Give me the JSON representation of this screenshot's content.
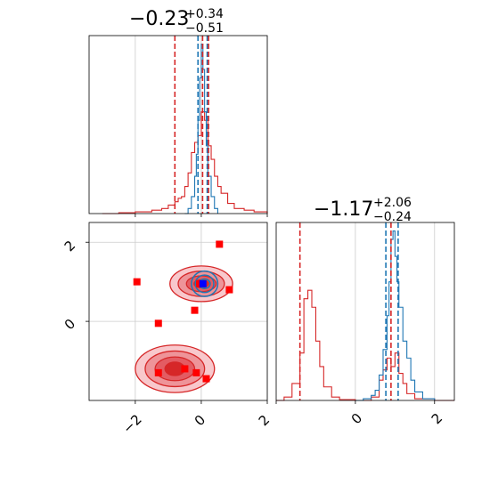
{
  "chart_data": [
    {
      "panel": "top-left",
      "type": "line",
      "title_main": "−0.23",
      "title_sup": "+0.34",
      "title_sub": "−0.51",
      "xlim": [
        -3.4,
        2.0
      ],
      "grid": true,
      "series": [
        {
          "color": "#d62728",
          "x": [
            -3.0,
            -2.5,
            -2.0,
            -1.5,
            -1.2,
            -1.0,
            -0.8,
            -0.7,
            -0.6,
            -0.5,
            -0.4,
            -0.3,
            -0.2,
            -0.1,
            0.0,
            0.1,
            0.2,
            0.3,
            0.4,
            0.5,
            0.6,
            0.8,
            1.0,
            1.3,
            1.6,
            2.0
          ],
          "y": [
            0,
            0.005,
            0.01,
            0.02,
            0.03,
            0.05,
            0.07,
            0.09,
            0.1,
            0.16,
            0.24,
            0.36,
            0.42,
            0.46,
            0.6,
            0.55,
            0.4,
            0.32,
            0.22,
            0.16,
            0.12,
            0.06,
            0.03,
            0.02,
            0.01,
            0
          ]
        },
        {
          "color": "#1f77b4",
          "x": [
            -0.5,
            -0.4,
            -0.3,
            -0.2,
            -0.15,
            -0.1,
            -0.05,
            0.0,
            0.05,
            0.1,
            0.15,
            0.2,
            0.3,
            0.4,
            0.5
          ],
          "y": [
            0,
            0.03,
            0.1,
            0.22,
            0.35,
            0.55,
            0.8,
            1.0,
            0.85,
            0.6,
            0.4,
            0.22,
            0.1,
            0.03,
            0
          ]
        }
      ],
      "vlines": [
        {
          "x": -0.8,
          "color": "#d62728"
        },
        {
          "x": -0.1,
          "color": "#1f77b4"
        },
        {
          "x": 0.04,
          "color": "#d62728"
        },
        {
          "x": 0.18,
          "color": "#1f77b4"
        },
        {
          "x": 0.22,
          "color": "#d62728"
        }
      ],
      "ylim": [
        0,
        1.05
      ]
    },
    {
      "panel": "bottom-right",
      "type": "line",
      "title_main": "−1.17",
      "title_sup": "+2.06",
      "title_sub": "−0.24",
      "xlim": [
        -2.0,
        2.5
      ],
      "xticks": [
        "0",
        "2"
      ],
      "grid": true,
      "series": [
        {
          "color": "#d62728",
          "x": [
            -2.0,
            -1.8,
            -1.6,
            -1.4,
            -1.3,
            -1.2,
            -1.1,
            -1.0,
            -0.9,
            -0.8,
            -0.6,
            -0.4,
            0.0,
            0.4,
            0.6,
            0.7,
            0.8,
            0.9,
            1.0,
            1.1,
            1.2,
            1.3,
            1.5,
            2.0,
            2.5
          ],
          "y": [
            0,
            0.02,
            0.1,
            0.28,
            0.6,
            0.65,
            0.55,
            0.35,
            0.2,
            0.08,
            0.02,
            0.005,
            0,
            0.02,
            0.12,
            0.18,
            0.25,
            0.2,
            0.28,
            0.16,
            0.1,
            0.04,
            0.01,
            0,
            0
          ]
        },
        {
          "color": "#1f77b4",
          "x": [
            0.0,
            0.2,
            0.4,
            0.5,
            0.6,
            0.7,
            0.8,
            0.85,
            0.9,
            0.95,
            1.0,
            1.05,
            1.1,
            1.2,
            1.3,
            1.4,
            1.5,
            1.7,
            2.0
          ],
          "y": [
            0,
            0.01,
            0.03,
            0.06,
            0.15,
            0.3,
            0.5,
            0.7,
            0.95,
            1.0,
            0.85,
            0.7,
            0.55,
            0.35,
            0.25,
            0.12,
            0.05,
            0.01,
            0
          ]
        }
      ],
      "vlines": [
        {
          "x": -1.4,
          "color": "#d62728"
        },
        {
          "x": 0.77,
          "color": "#1f77b4"
        },
        {
          "x": 0.9,
          "color": "#d62728"
        },
        {
          "x": 1.08,
          "color": "#1f77b4"
        }
      ],
      "ylim": [
        0,
        1.05
      ]
    },
    {
      "panel": "bottom-left",
      "type": "scatter",
      "xlim": [
        -3.4,
        2.0
      ],
      "ylim": [
        -2.0,
        2.5
      ],
      "xticks": [
        "−2",
        "0",
        "2"
      ],
      "yticks": [
        "0",
        "2"
      ],
      "grid": true,
      "contour_colors": [
        "#f8c8cc",
        "#ee9499",
        "#e35c63",
        "#d62728"
      ],
      "red_contours": [
        {
          "cx": 0.0,
          "cy": 0.95,
          "rx": [
            0.95,
            0.7,
            0.45,
            0.22
          ],
          "ry": [
            0.45,
            0.32,
            0.2,
            0.1
          ]
        },
        {
          "cx": -0.8,
          "cy": -1.2,
          "rx": [
            1.2,
            0.9,
            0.6,
            0.3
          ],
          "ry": [
            0.6,
            0.45,
            0.3,
            0.17
          ]
        }
      ],
      "blue_contour": {
        "cx": 0.1,
        "cy": 0.95,
        "rx": [
          0.4,
          0.28,
          0.17
        ],
        "ry": [
          0.32,
          0.22,
          0.12
        ],
        "color": "#1f77b4"
      },
      "red_points": [
        [
          0.55,
          1.95
        ],
        [
          -1.95,
          1.0
        ],
        [
          0.85,
          0.8
        ],
        [
          -0.2,
          0.28
        ],
        [
          -1.3,
          -0.05
        ],
        [
          -1.3,
          -1.3
        ],
        [
          -0.5,
          -1.2
        ],
        [
          -0.15,
          -1.3
        ],
        [
          0.15,
          -1.45
        ],
        [
          -0.05,
          0.95
        ]
      ],
      "blue_point": [
        0.05,
        0.95
      ]
    }
  ]
}
